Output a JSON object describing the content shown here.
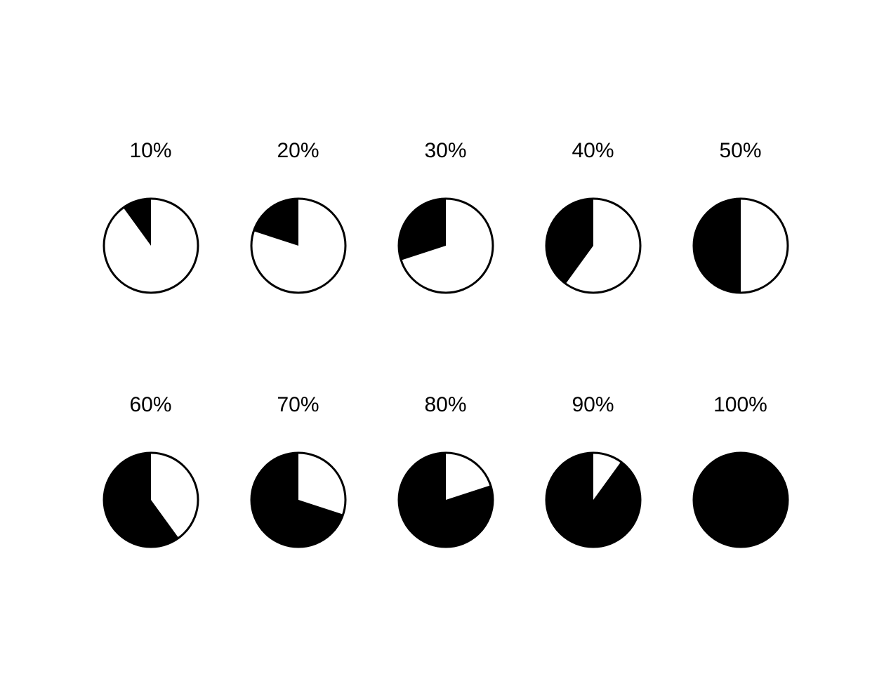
{
  "chart": {
    "type": "pie-percentage-set",
    "background_color": "#ffffff",
    "fill_color": "#000000",
    "empty_color": "#ffffff",
    "stroke_color": "#000000",
    "stroke_width": 3,
    "radius": 67,
    "label_fontsize": 30,
    "label_color": "#000000",
    "label_fontweight": "400",
    "columns": 5,
    "rows": 2,
    "start_angle_deg": 0,
    "fill_direction": "counter-clockwise",
    "items": [
      {
        "percent": 10,
        "label": "10%"
      },
      {
        "percent": 20,
        "label": "20%"
      },
      {
        "percent": 30,
        "label": "30%"
      },
      {
        "percent": 40,
        "label": "40%"
      },
      {
        "percent": 50,
        "label": "50%"
      },
      {
        "percent": 60,
        "label": "60%"
      },
      {
        "percent": 70,
        "label": "70%"
      },
      {
        "percent": 80,
        "label": "80%"
      },
      {
        "percent": 90,
        "label": "90%"
      },
      {
        "percent": 100,
        "label": "100%"
      }
    ]
  }
}
